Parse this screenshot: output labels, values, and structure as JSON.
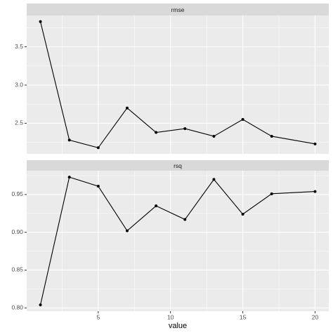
{
  "chart_data": [
    {
      "type": "line",
      "title": "rmse",
      "x": [
        1,
        3,
        5,
        7,
        9,
        11,
        13,
        15,
        17,
        20
      ],
      "values": [
        3.83,
        2.28,
        2.18,
        2.7,
        2.38,
        2.43,
        2.33,
        2.55,
        2.33,
        2.23
      ],
      "color": "#000000",
      "xlim": [
        0.05,
        20.95
      ],
      "xticks": [
        5,
        10,
        15,
        20
      ],
      "ylim": [
        2.1,
        3.91
      ],
      "yticks": [
        2.5,
        {
          "value": 3,
          "label": "3.0"
        },
        3.5
      ],
      "grid": true
    },
    {
      "type": "line",
      "title": "rsq",
      "x": [
        1,
        3,
        5,
        7,
        9,
        11,
        13,
        15,
        17,
        20
      ],
      "values": [
        0.804,
        0.973,
        0.961,
        0.902,
        0.935,
        0.917,
        0.97,
        0.924,
        0.951,
        0.954
      ],
      "color": "#000000",
      "xlim": [
        0.05,
        20.95
      ],
      "xticks": [
        5,
        10,
        15,
        20
      ],
      "ylim": [
        0.7956,
        0.9815
      ],
      "yticks": [
        {
          "value": 0.8,
          "label": "0.80"
        },
        0.85,
        {
          "value": 0.9,
          "label": "0.90"
        },
        0.95
      ],
      "x_label": "value",
      "grid": true
    }
  ]
}
